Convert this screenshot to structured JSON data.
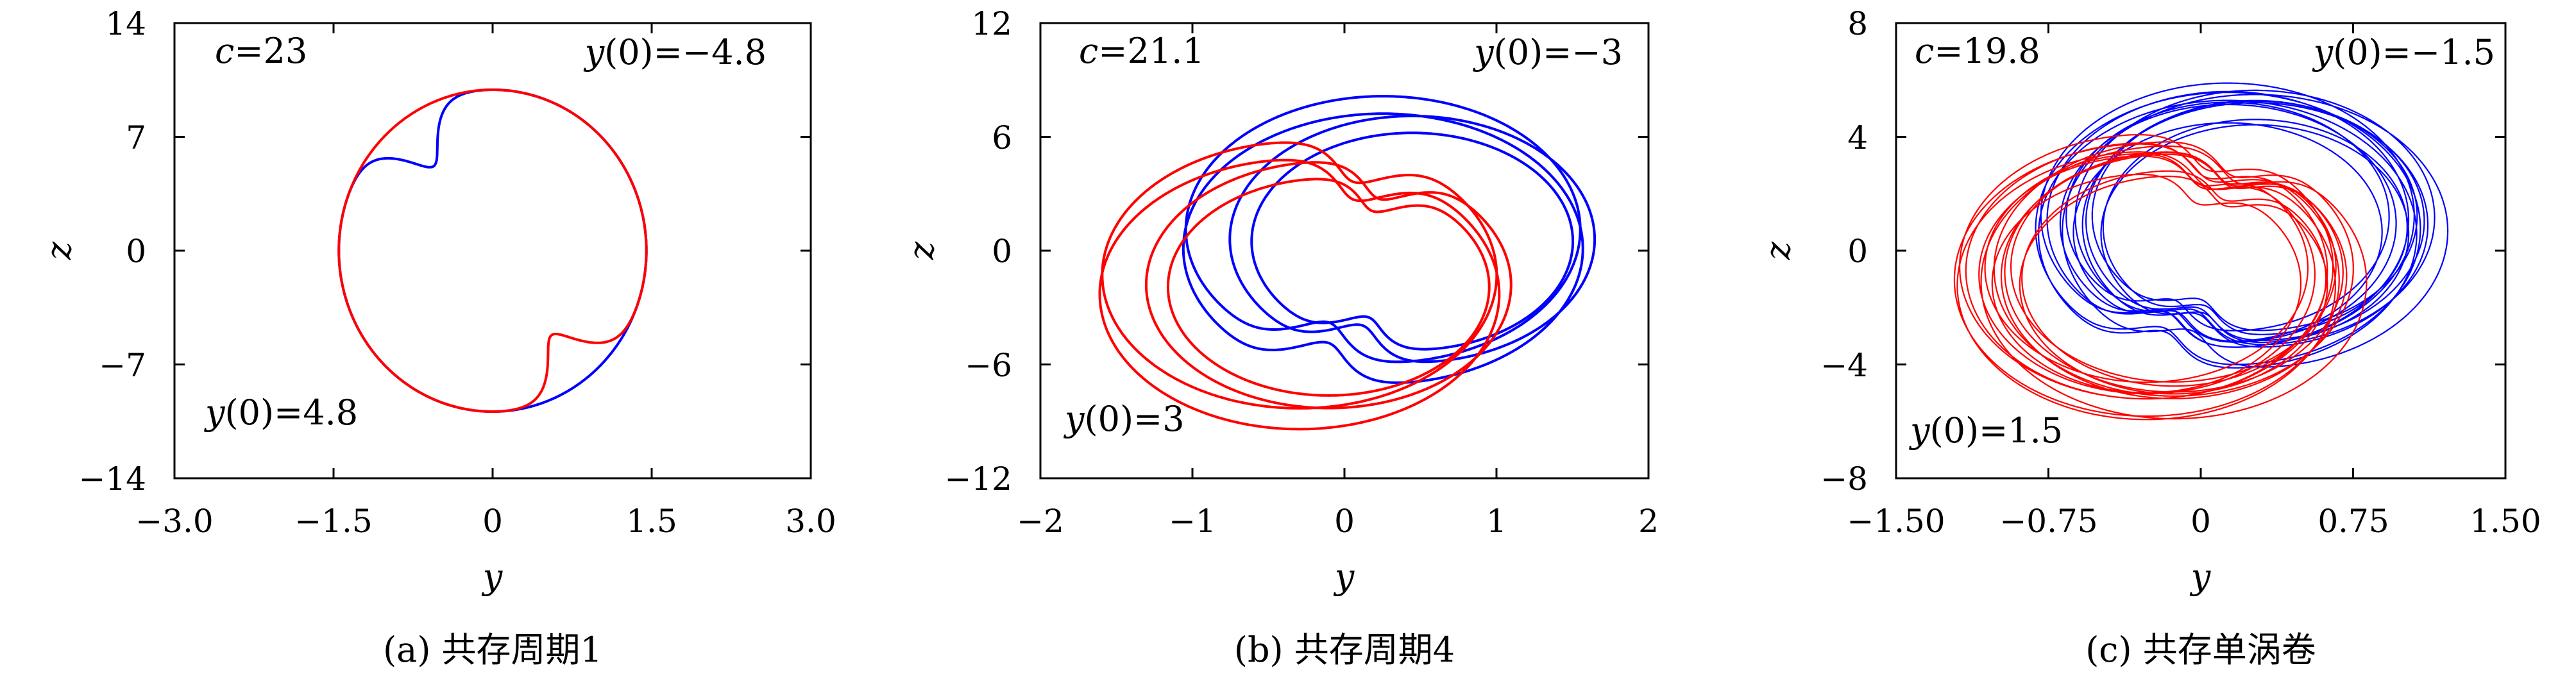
{
  "chart_data": [
    {
      "type": "line",
      "caption": "(a) 共存周期1",
      "xlabel": "y",
      "ylabel": "z",
      "xlim": [
        -3.0,
        3.0
      ],
      "ylim": [
        -14,
        14
      ],
      "xticks": [
        "−3.0",
        "−1.5",
        "0",
        "1.5",
        "3.0"
      ],
      "yticks": [
        "14",
        "7",
        "0",
        "−7",
        "−14"
      ],
      "annotations": {
        "param": {
          "symbol": "c",
          "value": "=23"
        },
        "ic_blue": {
          "prefix": "y",
          "value": "(0)=−4.8"
        },
        "ic_red": {
          "prefix": "y",
          "value": "(0)=4.8"
        }
      },
      "series": [
        {
          "color": "#0000ff",
          "loops": 1,
          "cx": 0.0,
          "cy": 0.0,
          "rx": 1.45,
          "ry": 9.9,
          "tilt": 0.3,
          "dent": 0.35,
          "dent_angle": 1.9
        },
        {
          "color": "#ff0000",
          "loops": 1,
          "cx": 0.0,
          "cy": 0.0,
          "rx": 1.45,
          "ry": 9.9,
          "tilt": 0.3,
          "dent": 0.35,
          "dent_angle": -1.24
        }
      ]
    },
    {
      "type": "line",
      "caption": "(b) 共存周期4",
      "xlabel": "y",
      "ylabel": "z",
      "xlim": [
        -2,
        2
      ],
      "ylim": [
        -12,
        12
      ],
      "xticks": [
        "−2",
        "−1",
        "0",
        "1",
        "2"
      ],
      "yticks": [
        "12",
        "6",
        "0",
        "−6",
        "−12"
      ],
      "annotations": {
        "param": {
          "symbol": "c",
          "value": "=21.1"
        },
        "ic_blue": {
          "prefix": "y",
          "value": "(0)=−3"
        },
        "ic_red": {
          "prefix": "y",
          "value": "(0)=3"
        }
      },
      "series": [
        {
          "color": "#0000ff",
          "loops": 4,
          "cx": 0.35,
          "cy": 0.6,
          "rx": 1.2,
          "ry": 6.5,
          "tilt": 0.35,
          "dent": 0.25,
          "dent_angle": -2.3
        },
        {
          "color": "#ff0000",
          "loops": 4,
          "cx": -0.2,
          "cy": -1.8,
          "rx": 1.2,
          "ry": 6.5,
          "tilt": 0.35,
          "dent": 0.25,
          "dent_angle": 0.84
        }
      ]
    },
    {
      "type": "line",
      "caption": "(c) 共存单涡卷",
      "xlabel": "y",
      "ylabel": "z",
      "xlim": [
        -1.5,
        1.5
      ],
      "ylim": [
        -8,
        8
      ],
      "xticks": [
        "−1.50",
        "−0.75",
        "0",
        "0.75",
        "1.50"
      ],
      "yticks": [
        "8",
        "4",
        "0",
        "−4",
        "−8"
      ],
      "annotations": {
        "param": {
          "symbol": "c",
          "value": "=19.8"
        },
        "ic_blue": {
          "prefix": "y",
          "value": "(0)=−1.5"
        },
        "ic_red": {
          "prefix": "y",
          "value": "(0)=1.5"
        }
      },
      "series": [
        {
          "color": "#0000ff",
          "loops": 14,
          "cx": 0.2,
          "cy": 0.9,
          "rx": 0.85,
          "ry": 4.3,
          "tilt": 0.4,
          "dent": 0.2,
          "dent_angle": -2.4
        },
        {
          "color": "#ff0000",
          "loops": 14,
          "cx": -0.2,
          "cy": -0.9,
          "rx": 0.85,
          "ry": 4.3,
          "tilt": 0.4,
          "dent": 0.2,
          "dent_angle": 0.74
        }
      ]
    }
  ]
}
